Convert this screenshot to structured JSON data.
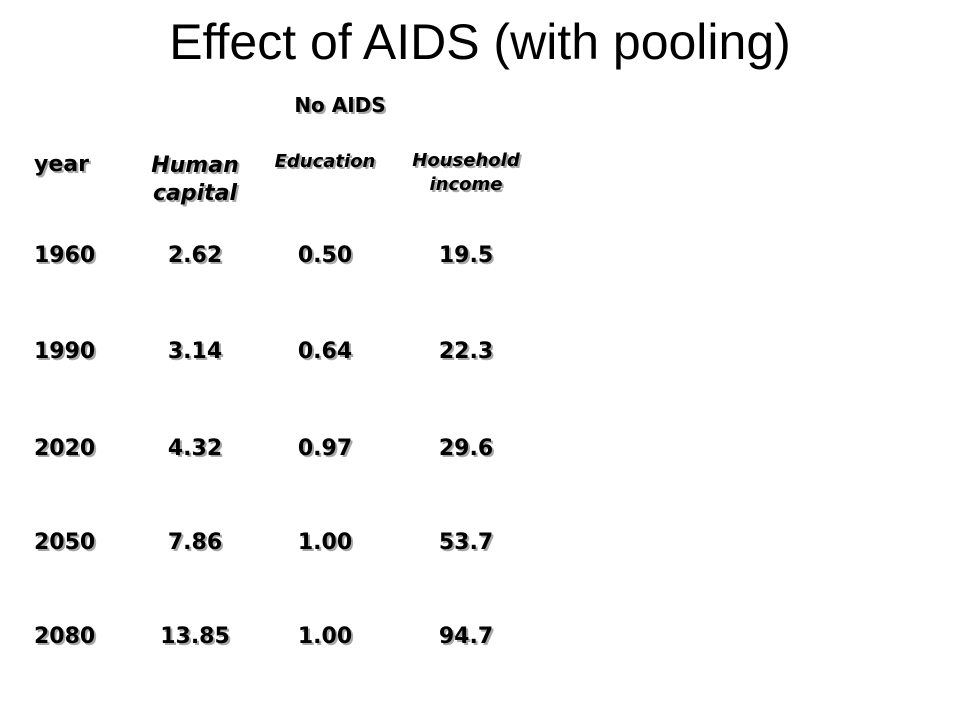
{
  "title": "Effect of AIDS (with pooling)",
  "table": {
    "group_label": "No AIDS",
    "headers": {
      "year": "year",
      "human_capital": [
        "Human",
        "capital"
      ],
      "education": "Education",
      "household_income": [
        "Household",
        "income"
      ]
    },
    "rows": [
      {
        "year": "1960",
        "human_capital": "2.62",
        "education": "0.50",
        "household_income": "19.5"
      },
      {
        "year": "1990",
        "human_capital": "3.14",
        "education": "0.64",
        "household_income": "22.3"
      },
      {
        "year": "2020",
        "human_capital": "4.32",
        "education": "0.97",
        "household_income": "29.6"
      },
      {
        "year": "2050",
        "human_capital": "7.86",
        "education": "1.00",
        "household_income": "53.7"
      },
      {
        "year": "2080",
        "human_capital": "13.85",
        "education": "1.00",
        "household_income": "94.7"
      }
    ]
  }
}
